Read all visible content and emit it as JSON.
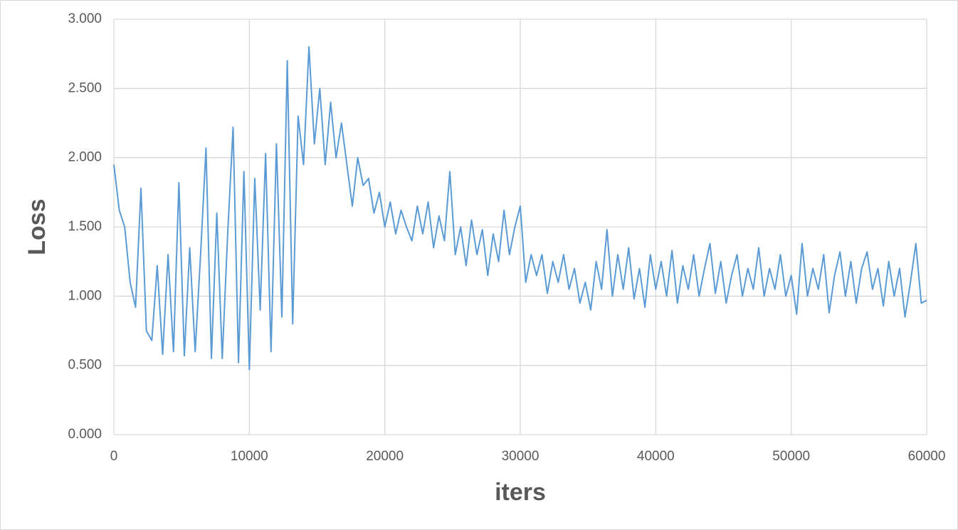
{
  "chart_data": {
    "type": "line",
    "x_label": "iters",
    "y_label": "Loss",
    "x": [
      0,
      400,
      800,
      1200,
      1600,
      2000,
      2400,
      2800,
      3200,
      3600,
      4000,
      4400,
      4800,
      5200,
      5600,
      6000,
      6400,
      6800,
      7200,
      7600,
      8000,
      8400,
      8800,
      9200,
      9600,
      10000,
      10400,
      10800,
      11200,
      11600,
      12000,
      12400,
      12800,
      13200,
      13600,
      14000,
      14400,
      14800,
      15200,
      15600,
      16000,
      16400,
      16800,
      17200,
      17600,
      18000,
      18400,
      18800,
      19200,
      19600,
      20000,
      20400,
      20800,
      21200,
      21600,
      22000,
      22400,
      22800,
      23200,
      23600,
      24000,
      24400,
      24800,
      25200,
      25600,
      26000,
      26400,
      26800,
      27200,
      27600,
      28000,
      28400,
      28800,
      29200,
      29600,
      30000,
      30400,
      30800,
      31200,
      31600,
      32000,
      32400,
      32800,
      33200,
      33600,
      34000,
      34400,
      34800,
      35200,
      35600,
      36000,
      36400,
      36800,
      37200,
      37600,
      38000,
      38400,
      38800,
      39200,
      39600,
      40000,
      40400,
      40800,
      41200,
      41600,
      42000,
      42400,
      42800,
      43200,
      43600,
      44000,
      44400,
      44800,
      45200,
      45600,
      46000,
      46400,
      46800,
      47200,
      47600,
      48000,
      48400,
      48800,
      49200,
      49600,
      50000,
      50400,
      50800,
      51200,
      51600,
      52000,
      52400,
      52800,
      53200,
      53600,
      54000,
      54400,
      54800,
      55200,
      55600,
      56000,
      56400,
      56800,
      57200,
      57600,
      58000,
      58400,
      58800,
      59200,
      59600,
      60000
    ],
    "series": [
      {
        "name": "Loss",
        "color": "#5b9bd5",
        "values": [
          1.95,
          1.62,
          1.5,
          1.1,
          0.92,
          1.78,
          0.75,
          0.68,
          1.22,
          0.58,
          1.3,
          0.6,
          1.82,
          0.57,
          1.35,
          0.6,
          1.3,
          2.07,
          0.55,
          1.6,
          0.55,
          1.45,
          2.22,
          0.52,
          1.9,
          0.47,
          1.85,
          0.9,
          2.03,
          0.6,
          2.1,
          0.85,
          2.7,
          0.8,
          2.3,
          1.95,
          2.8,
          2.1,
          2.5,
          1.95,
          2.4,
          2.0,
          2.25,
          1.95,
          1.65,
          2.0,
          1.8,
          1.85,
          1.6,
          1.75,
          1.5,
          1.68,
          1.45,
          1.62,
          1.5,
          1.4,
          1.65,
          1.45,
          1.68,
          1.35,
          1.58,
          1.4,
          1.9,
          1.3,
          1.5,
          1.22,
          1.55,
          1.3,
          1.48,
          1.15,
          1.45,
          1.25,
          1.62,
          1.3,
          1.5,
          1.65,
          1.1,
          1.3,
          1.15,
          1.3,
          1.02,
          1.25,
          1.1,
          1.3,
          1.05,
          1.2,
          0.95,
          1.1,
          0.9,
          1.25,
          1.05,
          1.48,
          1.0,
          1.3,
          1.05,
          1.35,
          0.98,
          1.2,
          0.92,
          1.3,
          1.05,
          1.25,
          1.0,
          1.33,
          0.95,
          1.22,
          1.05,
          1.3,
          1.0,
          1.2,
          1.38,
          1.02,
          1.25,
          0.95,
          1.15,
          1.3,
          1.0,
          1.2,
          1.05,
          1.35,
          1.0,
          1.2,
          1.05,
          1.3,
          1.0,
          1.15,
          0.87,
          1.38,
          1.0,
          1.2,
          1.05,
          1.3,
          0.88,
          1.15,
          1.32,
          1.0,
          1.25,
          0.95,
          1.2,
          1.32,
          1.05,
          1.2,
          0.93,
          1.25,
          1.0,
          1.2,
          0.85,
          1.1,
          1.38,
          0.95,
          0.97
        ]
      }
    ],
    "xlim": [
      0,
      60000
    ],
    "xticks": [
      0,
      10000,
      20000,
      30000,
      40000,
      50000,
      60000
    ],
    "ylim": [
      0,
      3
    ],
    "yticks": [
      {
        "value": 0,
        "label": "0.000"
      },
      {
        "value": 0.5,
        "label": "0.500"
      },
      {
        "value": 1,
        "label": "1.000"
      },
      {
        "value": 1.5,
        "label": "1.500"
      },
      {
        "value": 2,
        "label": "2.000"
      },
      {
        "value": 2.5,
        "label": "2.500"
      },
      {
        "value": 3,
        "label": "3.000"
      }
    ],
    "grid": true
  }
}
